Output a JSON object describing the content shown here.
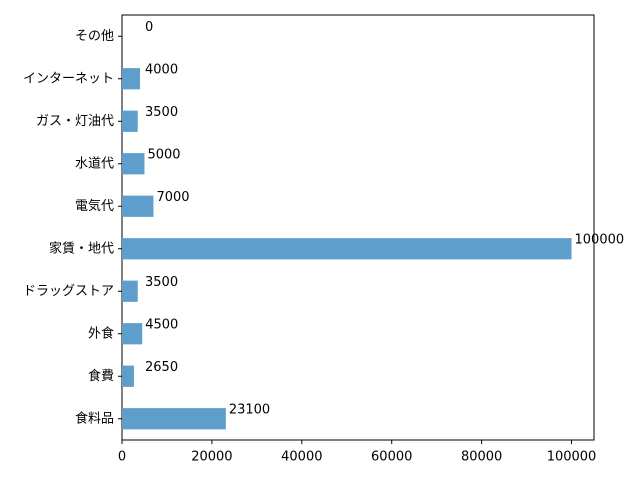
{
  "chart_data": {
    "type": "barh",
    "categories": [
      "食料品",
      "食費",
      "外食",
      "ドラッグストア",
      "家賃・地代",
      "電気代",
      "水道代",
      "ガス・灯油代",
      "インターネット",
      "その他"
    ],
    "values": [
      23100,
      2650,
      4500,
      3500,
      100000,
      7000,
      5000,
      3500,
      4000,
      0
    ],
    "color": "#5f9ecb",
    "xlim": [
      0,
      105000
    ],
    "xticks": [
      0,
      20000,
      40000,
      60000,
      80000,
      100000
    ]
  }
}
